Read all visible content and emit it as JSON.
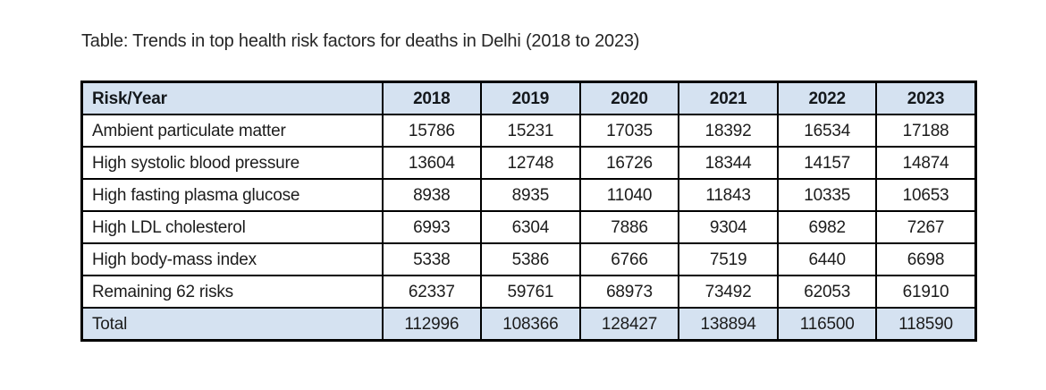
{
  "title": "Table: Trends in top health risk factors for deaths in Delhi (2018 to 2023)",
  "colors": {
    "page_bg": "#ffffff",
    "header_bg": "#d5e2f1",
    "total_bg": "#d5e2f1",
    "border": "#000000",
    "text": "#1c1c1c"
  },
  "chart_data": {
    "type": "table",
    "title": "Table: Trends in top health risk factors for deaths in Delhi (2018 to 2023)",
    "columns": [
      "Risk/Year",
      "2018",
      "2019",
      "2020",
      "2021",
      "2022",
      "2023"
    ],
    "rows": [
      {
        "label": "Ambient particulate matter",
        "values": [
          15786,
          15231,
          17035,
          18392,
          16534,
          17188
        ]
      },
      {
        "label": "High systolic blood pressure",
        "values": [
          13604,
          12748,
          16726,
          18344,
          14157,
          14874
        ]
      },
      {
        "label": "High fasting plasma glucose",
        "values": [
          8938,
          8935,
          11040,
          11843,
          10335,
          10653
        ]
      },
      {
        "label": "High LDL cholesterol",
        "values": [
          6993,
          6304,
          7886,
          9304,
          6982,
          7267
        ]
      },
      {
        "label": "High body-mass index",
        "values": [
          5338,
          5386,
          6766,
          7519,
          6440,
          6698
        ]
      },
      {
        "label": "Remaining 62 risks",
        "values": [
          62337,
          59761,
          68973,
          73492,
          62053,
          61910
        ]
      }
    ],
    "total_row": {
      "label": "Total",
      "values": [
        112996,
        108366,
        128427,
        138894,
        116500,
        118590
      ]
    }
  }
}
